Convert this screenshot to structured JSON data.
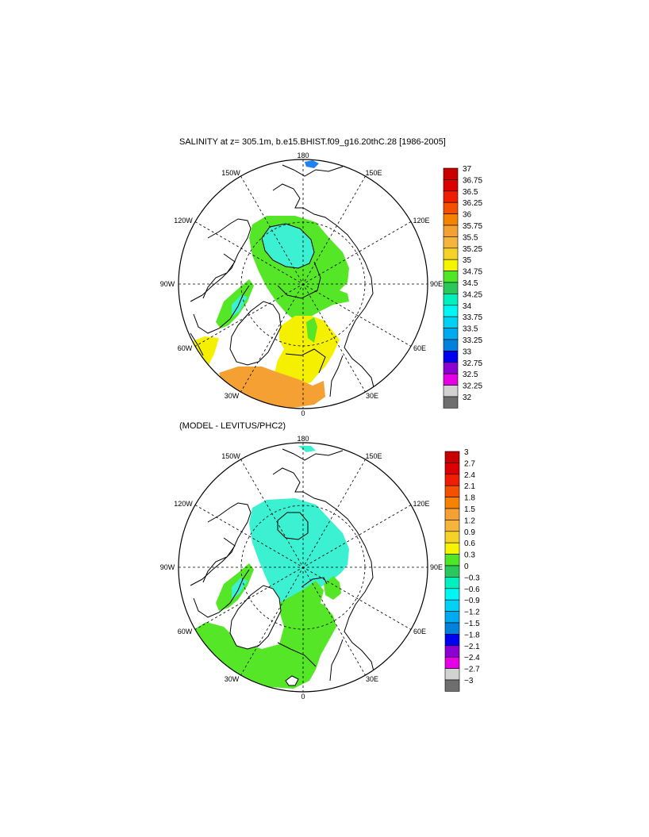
{
  "panels": [
    {
      "title": "SALINITY at z= 305.1m, b.e15.BHIST.f09_g16.20thC.28 [1986-2005]",
      "lon_labels": [
        "180",
        "150E",
        "120E",
        "90E",
        "60E",
        "30E",
        "0",
        "30W",
        "60W",
        "90W",
        "120W",
        "150W"
      ],
      "colorbar": [
        "37",
        "36.75",
        "36.5",
        "36.25",
        "36",
        "35.75",
        "35.5",
        "35.25",
        "35",
        "34.75",
        "34.5",
        "34.25",
        "34",
        "33.75",
        "33.5",
        "33.25",
        "33",
        "32.75",
        "32.5",
        "32.25",
        "32"
      ]
    },
    {
      "title": "(MODEL - LEVITUS/PHC2)",
      "lon_labels": [
        "180",
        "150E",
        "120E",
        "90E",
        "60E",
        "30E",
        "0",
        "30W",
        "60W",
        "90W",
        "120W",
        "150W"
      ],
      "colorbar": [
        "3",
        "2.7",
        "2.4",
        "2.1",
        "1.8",
        "1.5",
        "1.2",
        "0.9",
        "0.6",
        "0.3",
        "0",
        "−0.3",
        "−0.6",
        "−0.9",
        "−1.2",
        "−1.5",
        "−1.8",
        "−2.1",
        "−2.4",
        "−2.7",
        "−3"
      ]
    }
  ],
  "colors": {
    "scale": [
      "#c80000",
      "#dc0000",
      "#f01e00",
      "#f55000",
      "#f58200",
      "#f5a032",
      "#f5b43c",
      "#f5d228",
      "#f5f500",
      "#50e628",
      "#28c85a",
      "#00f0be",
      "#00f5f5",
      "#00d2f5",
      "#00aaf0",
      "#0082dc",
      "#0000f0",
      "#8c00d2",
      "#e600e6",
      "#d2d2d2",
      "#6e6e6e"
    ],
    "ocean_fresh": "#3cf0d2",
    "ocean_mid": "#55e628",
    "ocean_salty": "#f5f000",
    "ocean_orange": "#f5a032",
    "ocean_blue": "#1e82f0"
  }
}
